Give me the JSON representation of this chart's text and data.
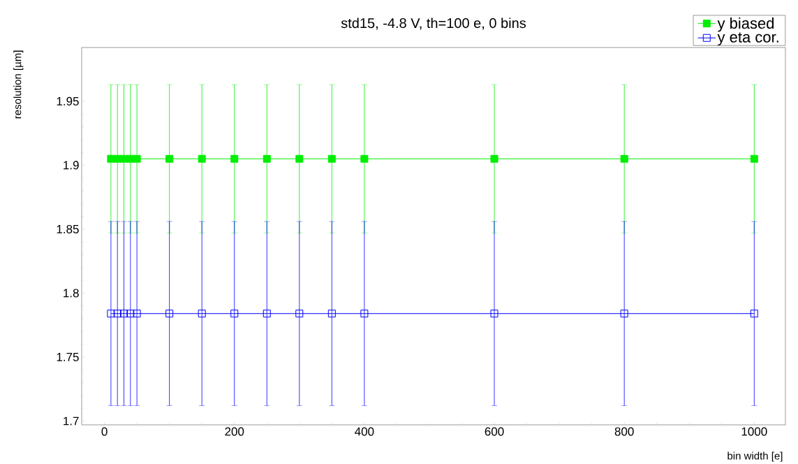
{
  "chart_data": {
    "type": "line",
    "title": "std15, -4.8 V, th=100 e, 0 bins",
    "xlabel": "bin width [e]",
    "ylabel": "resolution [µm]",
    "x": [
      10,
      20,
      30,
      40,
      50,
      100,
      150,
      200,
      250,
      300,
      350,
      400,
      600,
      800,
      1000
    ],
    "series": [
      {
        "name": "y biased",
        "color": "#00ee00",
        "marker": "square",
        "values": [
          1.905,
          1.905,
          1.905,
          1.905,
          1.905,
          1.905,
          1.905,
          1.905,
          1.905,
          1.905,
          1.905,
          1.905,
          1.905,
          1.905,
          1.905
        ],
        "errors": [
          0.058,
          0.058,
          0.058,
          0.058,
          0.058,
          0.058,
          0.058,
          0.058,
          0.058,
          0.058,
          0.058,
          0.058,
          0.058,
          0.058,
          0.058
        ]
      },
      {
        "name": "y eta cor.",
        "color": "#0000ff",
        "marker": "square",
        "values": [
          1.784,
          1.784,
          1.784,
          1.784,
          1.784,
          1.784,
          1.784,
          1.784,
          1.784,
          1.784,
          1.784,
          1.784,
          1.784,
          1.784,
          1.784
        ],
        "errors": [
          0.072,
          0.072,
          0.072,
          0.072,
          0.072,
          0.072,
          0.072,
          0.072,
          0.072,
          0.072,
          0.072,
          0.072,
          0.072,
          0.072,
          0.072
        ]
      }
    ],
    "xlim": [
      -35,
      1048
    ],
    "ylim": [
      1.697,
      1.992
    ],
    "xticks": [
      0,
      200,
      400,
      600,
      800,
      1000
    ],
    "yticks": [
      1.7,
      1.75,
      1.8,
      1.85,
      1.9,
      1.95
    ],
    "grid": false,
    "legend": "top right",
    "line_style": "solid"
  }
}
